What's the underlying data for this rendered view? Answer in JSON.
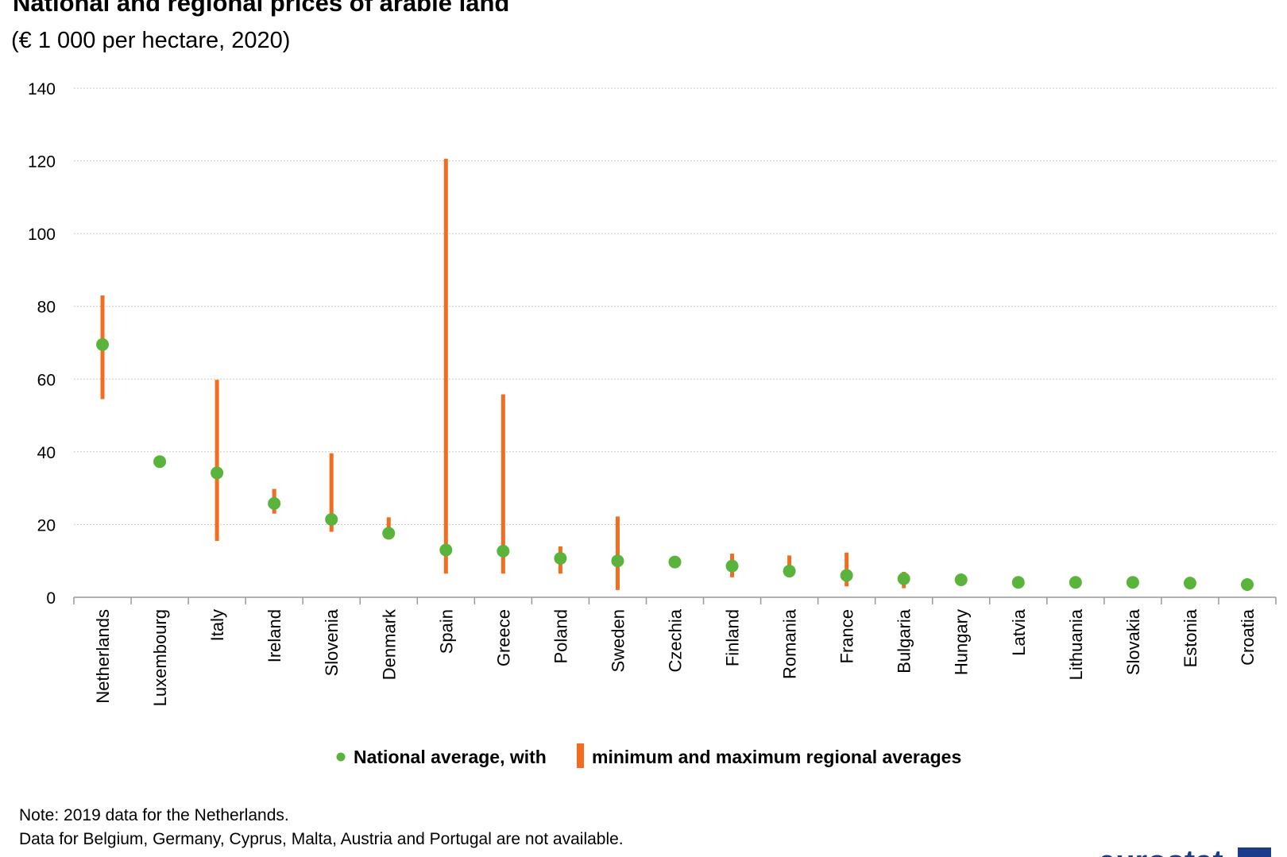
{
  "title": "National and regional prices of arable land",
  "subtitle": "(€ 1 000 per hectare, 2020)",
  "chart_data": {
    "type": "scatter",
    "categories": [
      "Netherlands",
      "Luxembourg",
      "Italy",
      "Ireland",
      "Slovenia",
      "Denmark",
      "Spain",
      "Greece",
      "Poland",
      "Sweden",
      "Czechia",
      "Finland",
      "Romania",
      "France",
      "Bulgaria",
      "Hungary",
      "Latvia",
      "Lithuania",
      "Slovakia",
      "Estonia",
      "Croatia"
    ],
    "series": [
      {
        "name": "National average, with",
        "values": [
          69.5,
          37.3,
          34.2,
          25.8,
          21.4,
          17.6,
          13.0,
          12.7,
          10.7,
          10.0,
          9.7,
          8.6,
          7.2,
          6.0,
          5.1,
          4.8,
          4.1,
          4.1,
          4.1,
          3.9,
          3.5
        ]
      },
      {
        "name": "minimum and maximum regional averages",
        "min": [
          54.5,
          null,
          15.5,
          23.0,
          18.0,
          17.0,
          6.5,
          6.5,
          6.5,
          2.0,
          null,
          5.5,
          6.0,
          3.0,
          2.5,
          null,
          null,
          null,
          null,
          null,
          null
        ],
        "max": [
          83.0,
          null,
          59.8,
          29.8,
          39.6,
          22.0,
          120.6,
          55.8,
          14.0,
          22.2,
          null,
          12.0,
          11.5,
          12.3,
          7.0,
          null,
          null,
          null,
          null,
          null,
          null
        ]
      }
    ],
    "ylim": [
      0,
      140
    ],
    "yticks": [
      0,
      20,
      40,
      60,
      80,
      100,
      120,
      140
    ],
    "grid": true,
    "legend_position": "bottom"
  },
  "colors": {
    "average": "#5ab43c",
    "range": "#f26d21",
    "grid": "#c8c8c8",
    "axis": "#999999"
  },
  "notes": [
    "Note: 2019 data for the Netherlands.",
    "Data for Belgium, Germany, Cyprus, Malta, Austria and Portugal are not available."
  ],
  "logo": {
    "text": "eurostat",
    "icon": "eu-flag-icon"
  }
}
